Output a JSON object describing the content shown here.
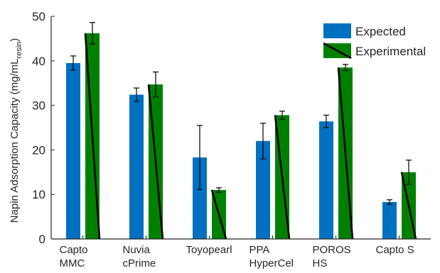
{
  "chart_data": {
    "type": "bar",
    "categories": [
      [
        "Capto",
        "MMC"
      ],
      [
        "Nuvia",
        "cPrime"
      ],
      [
        "Toyopearl"
      ],
      [
        "PPA",
        "HyperCel"
      ],
      [
        "POROS",
        "HS"
      ],
      [
        "Capto S"
      ]
    ],
    "series": [
      {
        "name": "Expected",
        "color": "#0070c0",
        "values": [
          39.5,
          32.4,
          18.3,
          22.0,
          26.4,
          8.3
        ],
        "error": [
          1.6,
          1.5,
          7.2,
          4.0,
          1.4,
          0.5
        ]
      },
      {
        "name": "Experimental",
        "color": "#008000",
        "hatch": "diagonal",
        "values": [
          46.2,
          34.7,
          11.0,
          27.8,
          38.5,
          15.0
        ],
        "error": [
          2.4,
          2.8,
          0.5,
          0.9,
          0.7,
          2.7
        ]
      }
    ],
    "ylabel": "Napin Adsorption Capacity (mg/mL",
    "ylabel_subscript": "resin",
    "ylabel_suffix": ")",
    "ylim": [
      0,
      50
    ],
    "yticks": [
      0,
      10,
      20,
      30,
      40,
      50
    ],
    "grid": false,
    "legend_position": "top-right"
  }
}
